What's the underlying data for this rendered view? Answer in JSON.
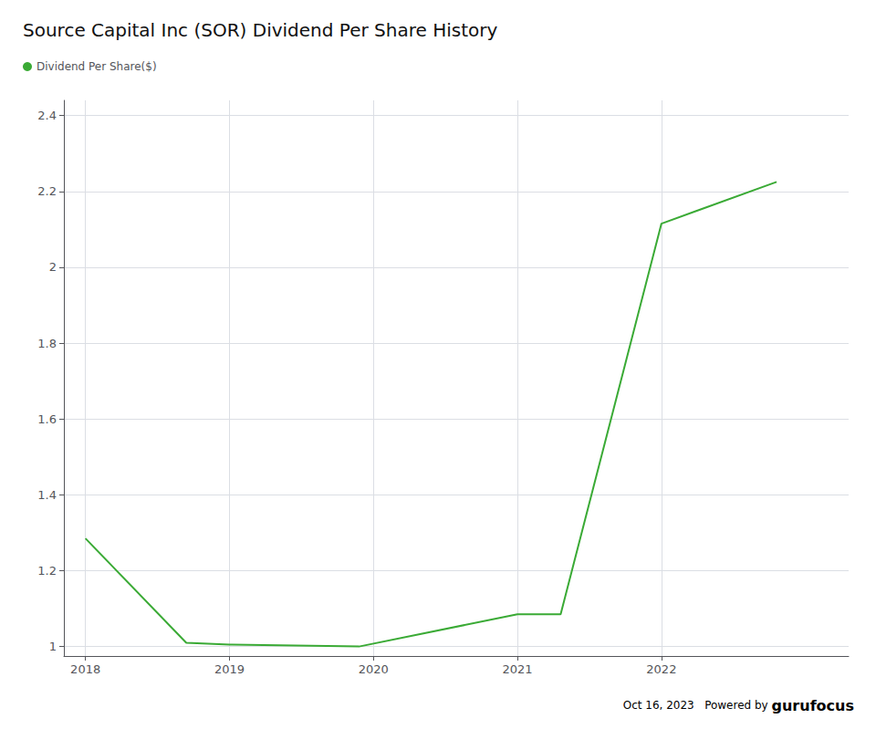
{
  "chart_data": {
    "type": "line",
    "title": "Source Capital Inc (SOR) Dividend Per Share History",
    "x": [
      2018.0,
      2018.7,
      2019.0,
      2019.9,
      2021.0,
      2021.3,
      2022.0,
      2022.8
    ],
    "series": [
      {
        "name": "Dividend Per Share($)",
        "color": "#3aaa35",
        "values": [
          1.285,
          1.01,
          1.005,
          1.0,
          1.085,
          1.085,
          2.115,
          2.225
        ]
      }
    ],
    "xlim": [
      2017.85,
      2023.3
    ],
    "xticks": [
      2018,
      2019,
      2020,
      2021,
      2022
    ],
    "ylim": [
      0.975,
      2.44
    ],
    "yticks": [
      1,
      1.2,
      1.4,
      1.6,
      1.8,
      2,
      2.2,
      2.4
    ],
    "grid": true,
    "legend": "upper left",
    "annotations": [
      "Oct 16, 2023",
      "Powered by",
      "guru",
      "focus"
    ]
  }
}
